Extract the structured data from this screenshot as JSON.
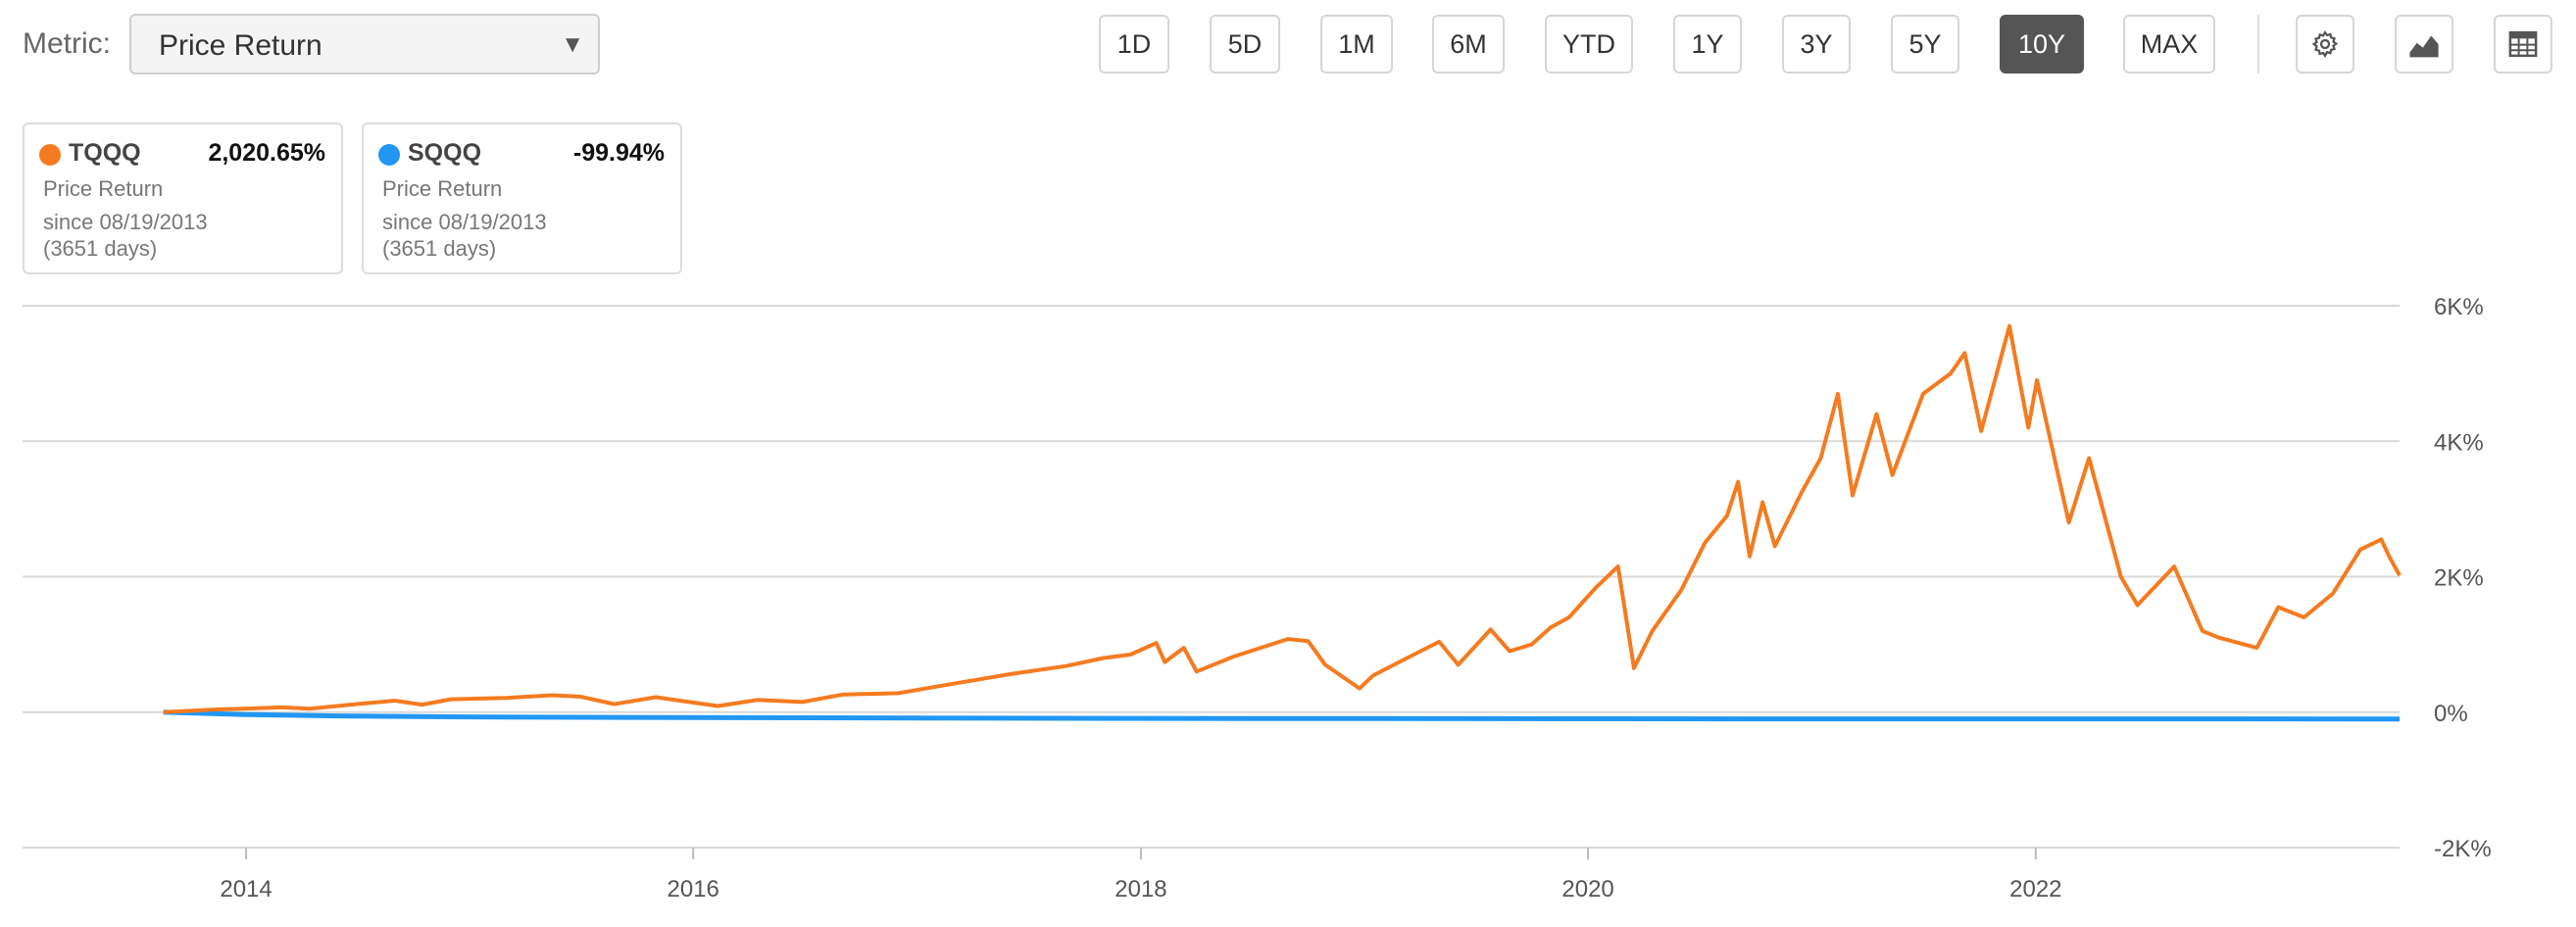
{
  "toolbar": {
    "metric_label": "Metric:",
    "metric_value": "Price Return",
    "ranges": [
      "1D",
      "5D",
      "1M",
      "6M",
      "YTD",
      "1Y",
      "3Y",
      "5Y",
      "10Y",
      "MAX"
    ],
    "active_range": "10Y",
    "icons": [
      "gear-icon",
      "chart-type-icon",
      "table-icon"
    ]
  },
  "legend": [
    {
      "ticker": "TQQQ",
      "value": "2,020.65%",
      "metric": "Price Return",
      "since": "since 08/19/2013",
      "days": "(3651 days)",
      "color": "#f47b20"
    },
    {
      "ticker": "SQQQ",
      "value": "-99.94%",
      "metric": "Price Return",
      "since": "since 08/19/2013",
      "days": "(3651 days)",
      "color": "#2196f3"
    }
  ],
  "chart_data": {
    "type": "line",
    "x_axis": {
      "type": "date",
      "ticks": [
        "2014",
        "2016",
        "2018",
        "2020",
        "2022"
      ],
      "range": [
        "2013-08-19",
        "2023-08-18"
      ]
    },
    "y_axis": {
      "unit": "%",
      "ticks": [
        "-2K%",
        "0%",
        "2K%",
        "4K%",
        "6K%"
      ],
      "range": [
        -2000,
        6000
      ],
      "position": "right"
    },
    "grid": "horizontal",
    "series": [
      {
        "name": "TQQQ",
        "color": "#f47b20",
        "points": [
          [
            "2013-08-19",
            0
          ],
          [
            "2013-11-15",
            40
          ],
          [
            "2014-03-01",
            70
          ],
          [
            "2014-04-15",
            50
          ],
          [
            "2014-07-01",
            120
          ],
          [
            "2014-09-01",
            170
          ],
          [
            "2014-10-15",
            110
          ],
          [
            "2014-12-01",
            190
          ],
          [
            "2015-03-01",
            210
          ],
          [
            "2015-05-15",
            250
          ],
          [
            "2015-07-01",
            230
          ],
          [
            "2015-08-25",
            120
          ],
          [
            "2015-11-01",
            220
          ],
          [
            "2016-02-10",
            90
          ],
          [
            "2016-04-15",
            180
          ],
          [
            "2016-06-27",
            150
          ],
          [
            "2016-09-01",
            260
          ],
          [
            "2016-12-01",
            280
          ],
          [
            "2017-03-01",
            420
          ],
          [
            "2017-06-01",
            560
          ],
          [
            "2017-09-01",
            680
          ],
          [
            "2017-11-01",
            800
          ],
          [
            "2017-12-15",
            850
          ],
          [
            "2018-01-26",
            1020
          ],
          [
            "2018-02-09",
            740
          ],
          [
            "2018-03-12",
            950
          ],
          [
            "2018-04-02",
            600
          ],
          [
            "2018-06-01",
            820
          ],
          [
            "2018-08-29",
            1080
          ],
          [
            "2018-10-01",
            1050
          ],
          [
            "2018-10-29",
            700
          ],
          [
            "2018-12-24",
            350
          ],
          [
            "2019-01-15",
            540
          ],
          [
            "2019-03-01",
            750
          ],
          [
            "2019-05-03",
            1040
          ],
          [
            "2019-06-03",
            700
          ],
          [
            "2019-07-26",
            1220
          ],
          [
            "2019-08-26",
            900
          ],
          [
            "2019-10-01",
            1000
          ],
          [
            "2019-11-01",
            1250
          ],
          [
            "2019-12-01",
            1400
          ],
          [
            "2020-01-15",
            1850
          ],
          [
            "2020-02-19",
            2150
          ],
          [
            "2020-03-16",
            650
          ],
          [
            "2020-04-15",
            1200
          ],
          [
            "2020-06-01",
            1800
          ],
          [
            "2020-07-10",
            2500
          ],
          [
            "2020-08-15",
            2900
          ],
          [
            "2020-09-02",
            3400
          ],
          [
            "2020-09-21",
            2300
          ],
          [
            "2020-10-12",
            3100
          ],
          [
            "2020-11-01",
            2450
          ],
          [
            "2020-12-15",
            3250
          ],
          [
            "2021-01-15",
            3750
          ],
          [
            "2021-02-12",
            4700
          ],
          [
            "2021-03-08",
            3200
          ],
          [
            "2021-04-16",
            4400
          ],
          [
            "2021-05-12",
            3500
          ],
          [
            "2021-07-01",
            4700
          ],
          [
            "2021-08-15",
            5000
          ],
          [
            "2021-09-07",
            5300
          ],
          [
            "2021-10-04",
            4150
          ],
          [
            "2021-11-19",
            5700
          ],
          [
            "2021-12-20",
            4200
          ],
          [
            "2022-01-03",
            4900
          ],
          [
            "2022-02-24",
            2800
          ],
          [
            "2022-03-29",
            3750
          ],
          [
            "2022-05-20",
            2000
          ],
          [
            "2022-06-16",
            1580
          ],
          [
            "2022-08-15",
            2150
          ],
          [
            "2022-09-30",
            1200
          ],
          [
            "2022-10-27",
            1100
          ],
          [
            "2022-12-28",
            950
          ],
          [
            "2023-02-01",
            1550
          ],
          [
            "2023-03-15",
            1400
          ],
          [
            "2023-05-01",
            1750
          ],
          [
            "2023-06-15",
            2400
          ],
          [
            "2023-07-19",
            2550
          ],
          [
            "2023-08-01",
            2300
          ],
          [
            "2023-08-18",
            2020
          ]
        ]
      },
      {
        "name": "SQQQ",
        "color": "#2196f3",
        "points": [
          [
            "2013-08-19",
            0
          ],
          [
            "2014-01-01",
            -35
          ],
          [
            "2014-06-01",
            -55
          ],
          [
            "2015-01-01",
            -70
          ],
          [
            "2016-01-01",
            -80
          ],
          [
            "2017-01-01",
            -86
          ],
          [
            "2018-01-01",
            -92
          ],
          [
            "2019-01-01",
            -95
          ],
          [
            "2020-01-01",
            -97
          ],
          [
            "2021-01-01",
            -99
          ],
          [
            "2022-01-01",
            -99.5
          ],
          [
            "2023-08-18",
            -99.94
          ]
        ]
      }
    ]
  }
}
